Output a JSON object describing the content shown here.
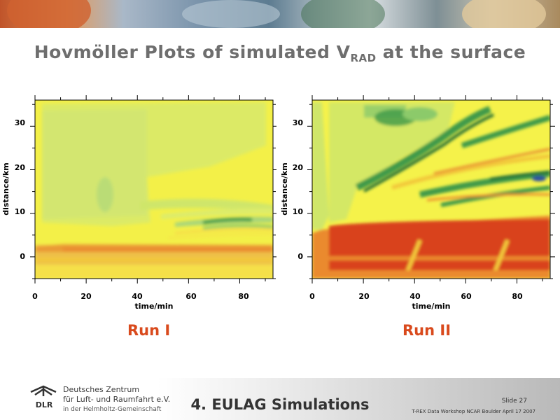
{
  "slide": {
    "title_main": "Hovmöller Plots of simulated V",
    "title_sub": "RAD",
    "title_tail": " at the surface"
  },
  "plots": [
    {
      "run_label": "Run I",
      "xlabel": "time/min",
      "ylabel": "distance/km",
      "x_ticks": [
        "0",
        "20",
        "40",
        "60",
        "80"
      ],
      "y_ticks": [
        "0",
        "10",
        "20",
        "30"
      ]
    },
    {
      "run_label": "Run II",
      "xlabel": "time/min",
      "ylabel": "distance/km",
      "x_ticks": [
        "0",
        "20",
        "40",
        "60",
        "80"
      ],
      "y_ticks": [
        "0",
        "10",
        "20",
        "30"
      ]
    }
  ],
  "chart_data": [
    {
      "type": "heatmap",
      "xlabel": "time/min",
      "ylabel": "distance/km",
      "xlim": [
        0,
        93
      ],
      "ylim": [
        -5,
        36
      ],
      "x_ticks": [
        0,
        20,
        40,
        60,
        80
      ],
      "y_ticks": [
        0,
        10,
        20,
        30
      ],
      "color_scale": [
        "#1f6b34",
        "#3f9a4a",
        "#8cca6a",
        "#cfe66a",
        "#f5f24a",
        "#f2c83a",
        "#ea8a2e",
        "#d9421f"
      ]
    },
    {
      "type": "heatmap",
      "xlabel": "time/min",
      "ylabel": "distance/km",
      "xlim": [
        0,
        93
      ],
      "ylim": [
        -5,
        36
      ],
      "x_ticks": [
        0,
        20,
        40,
        60,
        80
      ],
      "y_ticks": [
        0,
        10,
        20,
        30
      ],
      "color_scale": [
        "#1f6b34",
        "#3f9a4a",
        "#8cca6a",
        "#cfe66a",
        "#f5f24a",
        "#f2c83a",
        "#ea8a2e",
        "#d9421f"
      ]
    }
  ],
  "footer": {
    "institution_line1": "Deutsches Zentrum",
    "institution_line2": "für Luft- und Raumfahrt e.V.",
    "institution_line3": "in der Helmholtz-Gemeinschaft",
    "logo_text": "DLR",
    "section_title": "4. EULAG Simulations",
    "slide_number": "Slide 27",
    "workshop_text": "T-REX Data Workshop NCAR Boulder April 17 2007"
  }
}
